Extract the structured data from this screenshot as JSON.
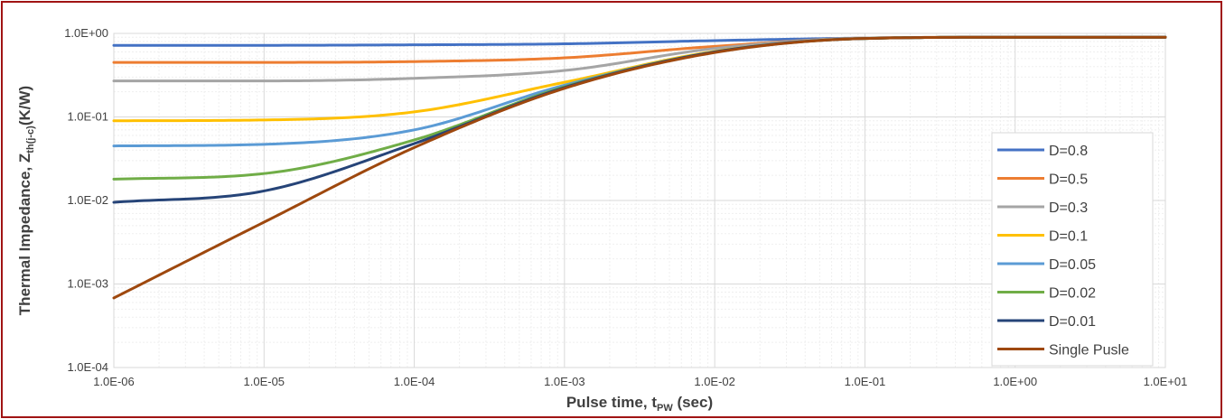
{
  "chart_data": {
    "type": "line",
    "title": "",
    "xlabel": {
      "main": "Pulse time, t",
      "sub": "PW",
      "unit": " (sec)"
    },
    "ylabel": {
      "main": "Thermal Impedance, Z",
      "sub": "th(j-c)",
      "unit": "(K/W)"
    },
    "x_scale": "log",
    "y_scale": "log",
    "xlim": [
      1e-06,
      10
    ],
    "ylim": [
      0.0001,
      1
    ],
    "x_ticks": [
      1e-06,
      1e-05,
      0.0001,
      0.001,
      0.01,
      0.1,
      1,
      10
    ],
    "x_tick_labels": [
      "1.0E-06",
      "1.0E-05",
      "1.0E-04",
      "1.0E-03",
      "1.0E-02",
      "1.0E-01",
      "1.0E+00",
      "1.0E+01"
    ],
    "y_ticks": [
      0.0001,
      0.001,
      0.01,
      0.1,
      1
    ],
    "y_tick_labels": [
      "1.0E-04",
      "1.0E-03",
      "1.0E-02",
      "1.0E-01",
      "1.0E+00"
    ],
    "grid": true,
    "legend_position": "right",
    "x": [
      1e-06,
      1e-05,
      0.0001,
      0.001,
      0.01,
      0.1,
      1,
      10
    ],
    "series": [
      {
        "name": "D=0.8",
        "color": "#4472c4",
        "values": [
          0.72,
          0.72,
          0.73,
          0.75,
          0.82,
          0.88,
          0.9,
          0.9
        ]
      },
      {
        "name": "D=0.5",
        "color": "#ed7d31",
        "values": [
          0.45,
          0.45,
          0.46,
          0.51,
          0.7,
          0.88,
          0.9,
          0.9
        ]
      },
      {
        "name": "D=0.3",
        "color": "#a5a5a5",
        "values": [
          0.27,
          0.27,
          0.29,
          0.36,
          0.66,
          0.88,
          0.9,
          0.9
        ]
      },
      {
        "name": "D=0.1",
        "color": "#ffc000",
        "values": [
          0.09,
          0.092,
          0.115,
          0.26,
          0.61,
          0.87,
          0.9,
          0.9
        ]
      },
      {
        "name": "D=0.05",
        "color": "#5b9bd5",
        "values": [
          0.045,
          0.047,
          0.07,
          0.24,
          0.6,
          0.87,
          0.9,
          0.9
        ]
      },
      {
        "name": "D=0.02",
        "color": "#70ad47",
        "values": [
          0.018,
          0.021,
          0.053,
          0.23,
          0.6,
          0.87,
          0.9,
          0.9
        ]
      },
      {
        "name": "D=0.01",
        "color": "#264478",
        "values": [
          0.0095,
          0.013,
          0.048,
          0.225,
          0.6,
          0.87,
          0.9,
          0.9
        ]
      },
      {
        "name": "Single Pusle",
        "color": "#9e480e",
        "values": [
          0.00068,
          0.0055,
          0.043,
          0.22,
          0.59,
          0.87,
          0.9,
          0.9
        ]
      }
    ]
  }
}
